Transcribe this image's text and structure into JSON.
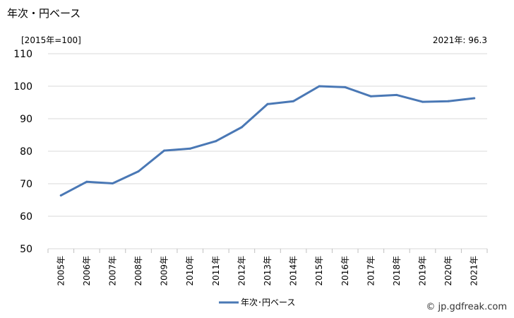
{
  "title": "年次・円ベース",
  "unit_label": "[2015年=100]",
  "latest_label": "2021年: 96.3",
  "credit": "© jp.gdfreak.com",
  "chart_data": {
    "type": "line",
    "ylim": [
      50,
      110
    ],
    "yticks": [
      50,
      60,
      70,
      80,
      90,
      100,
      110
    ],
    "grid": true,
    "legend": "bottom",
    "categories": [
      "2005年",
      "2006年",
      "2007年",
      "2008年",
      "2009年",
      "2010年",
      "2011年",
      "2012年",
      "2013年",
      "2014年",
      "2015年",
      "2016年",
      "2017年",
      "2018年",
      "2019年",
      "2020年",
      "2021年"
    ],
    "series": [
      {
        "name": "年次･円ベース",
        "color": "#4a78b5",
        "values": [
          66.4,
          70.6,
          70.1,
          73.8,
          80.2,
          80.8,
          83.1,
          87.4,
          94.5,
          95.4,
          100.0,
          99.7,
          96.9,
          97.3,
          95.2,
          95.4,
          96.3
        ]
      }
    ]
  }
}
